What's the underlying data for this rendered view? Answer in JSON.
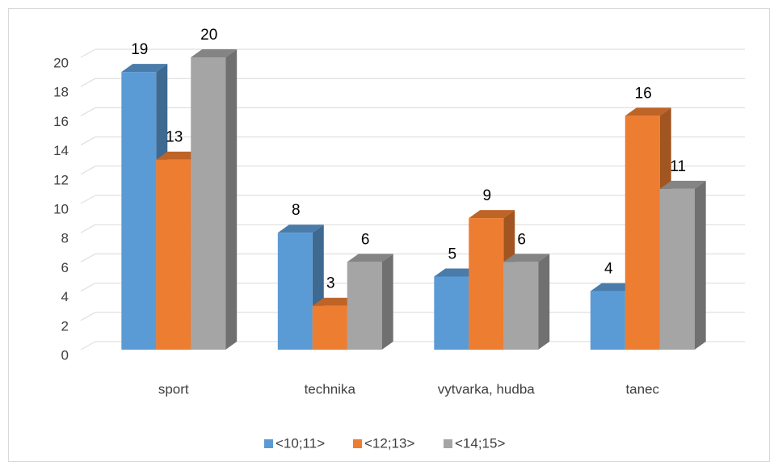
{
  "chart_data": {
    "type": "bar3d",
    "categories": [
      "sport",
      "technika",
      "vytvarka, hudba",
      "tanec"
    ],
    "series": [
      {
        "name": "<10;11>",
        "color": "#5b9bd5",
        "values": [
          19,
          8,
          5,
          4
        ]
      },
      {
        "name": "<12;13>",
        "color": "#ed7d31",
        "values": [
          13,
          3,
          9,
          16
        ]
      },
      {
        "name": "<14;15>",
        "color": "#a5a5a5",
        "values": [
          20,
          6,
          6,
          11
        ]
      }
    ],
    "ylim": [
      0,
      20
    ],
    "yticks": [
      0,
      2,
      4,
      6,
      8,
      10,
      12,
      14,
      16,
      18,
      20
    ],
    "grid": true,
    "legend": "bottom"
  }
}
